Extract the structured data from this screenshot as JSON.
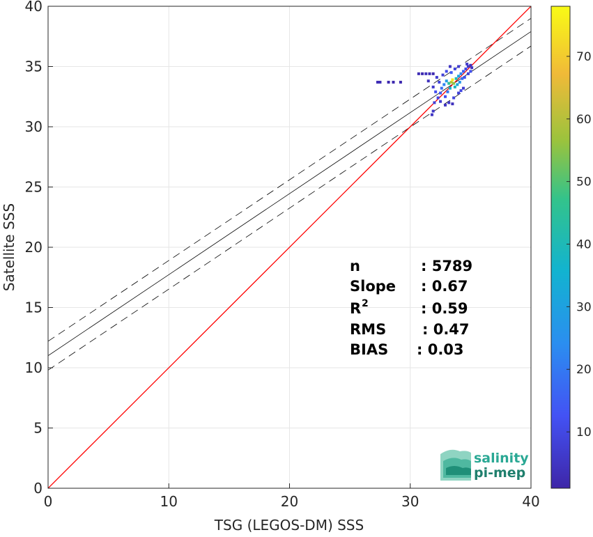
{
  "chart_data": {
    "type": "scatter",
    "subtype": "2d-density-scatter",
    "xlabel": "TSG (LEGOS-DM) SSS",
    "ylabel": "Satellite SSS",
    "xlim": [
      0,
      40
    ],
    "ylim": [
      0,
      40
    ],
    "x_ticks": [
      0,
      10,
      20,
      30,
      40
    ],
    "y_ticks": [
      0,
      5,
      10,
      15,
      20,
      25,
      30,
      35,
      40
    ],
    "grid": true,
    "colorbar": {
      "range": [
        1,
        78
      ],
      "ticks": [
        10,
        20,
        30,
        40,
        50,
        60,
        70
      ],
      "colormap": "parula"
    },
    "lines": {
      "identity": {
        "x": [
          0,
          40
        ],
        "y": [
          0,
          40
        ],
        "color": "#ff0000"
      },
      "fit": {
        "x": [
          0,
          40
        ],
        "y": [
          11.0,
          37.9
        ],
        "color": "#000000"
      },
      "fit_upper": {
        "x": [
          0,
          40
        ],
        "y": [
          12.2,
          39.0
        ],
        "color": "#000000",
        "dash": true
      },
      "fit_lower": {
        "x": [
          0,
          40
        ],
        "y": [
          9.8,
          36.7
        ],
        "color": "#000000",
        "dash": true
      }
    },
    "stats": [
      {
        "label": "n",
        "value": ": 5789",
        "sup": ""
      },
      {
        "label": "Slope",
        "value": ": 0.67",
        "sup": ""
      },
      {
        "label": "R",
        "value": ": 0.59",
        "sup": "2"
      },
      {
        "label": "RMS",
        "value": ": 0.47",
        "sup": ""
      },
      {
        "label": "BIAS",
        "value": ": 0.03",
        "sup": ""
      }
    ],
    "density_points": [
      {
        "x": 27.3,
        "y": 33.7,
        "c": 3
      },
      {
        "x": 27.5,
        "y": 33.7,
        "c": 3
      },
      {
        "x": 28.2,
        "y": 33.7,
        "c": 2
      },
      {
        "x": 28.6,
        "y": 33.7,
        "c": 2
      },
      {
        "x": 29.2,
        "y": 33.7,
        "c": 2
      },
      {
        "x": 30.7,
        "y": 34.4,
        "c": 3
      },
      {
        "x": 31.0,
        "y": 34.4,
        "c": 2
      },
      {
        "x": 31.3,
        "y": 34.4,
        "c": 4
      },
      {
        "x": 31.6,
        "y": 34.4,
        "c": 3
      },
      {
        "x": 31.9,
        "y": 34.4,
        "c": 2
      },
      {
        "x": 31.8,
        "y": 31.0,
        "c": 5
      },
      {
        "x": 31.9,
        "y": 31.3,
        "c": 6
      },
      {
        "x": 32.0,
        "y": 32.0,
        "c": 8
      },
      {
        "x": 32.3,
        "y": 32.4,
        "c": 10
      },
      {
        "x": 32.5,
        "y": 32.8,
        "c": 14
      },
      {
        "x": 32.6,
        "y": 33.2,
        "c": 18
      },
      {
        "x": 32.8,
        "y": 33.5,
        "c": 22
      },
      {
        "x": 33.0,
        "y": 33.8,
        "c": 28
      },
      {
        "x": 33.2,
        "y": 33.6,
        "c": 45
      },
      {
        "x": 33.4,
        "y": 33.7,
        "c": 60
      },
      {
        "x": 33.5,
        "y": 33.9,
        "c": 75
      },
      {
        "x": 33.6,
        "y": 33.6,
        "c": 55
      },
      {
        "x": 33.8,
        "y": 34.0,
        "c": 40
      },
      {
        "x": 34.0,
        "y": 34.2,
        "c": 30
      },
      {
        "x": 34.2,
        "y": 34.4,
        "c": 22
      },
      {
        "x": 34.4,
        "y": 34.6,
        "c": 15
      },
      {
        "x": 34.6,
        "y": 34.8,
        "c": 10
      },
      {
        "x": 34.8,
        "y": 35.0,
        "c": 6
      },
      {
        "x": 35.0,
        "y": 35.1,
        "c": 4
      },
      {
        "x": 35.1,
        "y": 34.9,
        "c": 5
      },
      {
        "x": 32.9,
        "y": 32.5,
        "c": 12
      },
      {
        "x": 33.1,
        "y": 32.9,
        "c": 20
      },
      {
        "x": 33.3,
        "y": 33.2,
        "c": 35
      },
      {
        "x": 33.7,
        "y": 33.3,
        "c": 38
      },
      {
        "x": 33.9,
        "y": 33.5,
        "c": 33
      },
      {
        "x": 34.1,
        "y": 33.7,
        "c": 26
      },
      {
        "x": 34.3,
        "y": 34.0,
        "c": 18
      },
      {
        "x": 34.5,
        "y": 34.1,
        "c": 12
      },
      {
        "x": 32.4,
        "y": 33.7,
        "c": 9
      },
      {
        "x": 32.2,
        "y": 34.1,
        "c": 7
      },
      {
        "x": 32.7,
        "y": 34.3,
        "c": 8
      },
      {
        "x": 33.0,
        "y": 34.6,
        "c": 11
      },
      {
        "x": 33.4,
        "y": 34.5,
        "c": 14
      },
      {
        "x": 33.7,
        "y": 34.8,
        "c": 9
      },
      {
        "x": 34.0,
        "y": 35.0,
        "c": 7
      },
      {
        "x": 33.2,
        "y": 32.0,
        "c": 6
      },
      {
        "x": 33.6,
        "y": 32.4,
        "c": 9
      },
      {
        "x": 34.0,
        "y": 32.8,
        "c": 8
      },
      {
        "x": 34.4,
        "y": 33.2,
        "c": 7
      },
      {
        "x": 32.1,
        "y": 32.9,
        "c": 12
      },
      {
        "x": 31.9,
        "y": 33.3,
        "c": 6
      },
      {
        "x": 32.9,
        "y": 31.8,
        "c": 5
      },
      {
        "x": 33.5,
        "y": 31.9,
        "c": 4
      },
      {
        "x": 34.8,
        "y": 34.4,
        "c": 8
      },
      {
        "x": 35.0,
        "y": 34.6,
        "c": 12
      },
      {
        "x": 34.7,
        "y": 35.2,
        "c": 6
      },
      {
        "x": 33.3,
        "y": 35.0,
        "c": 5
      },
      {
        "x": 32.5,
        "y": 32.1,
        "c": 7
      },
      {
        "x": 31.5,
        "y": 33.8,
        "c": 4
      },
      {
        "x": 34.2,
        "y": 33.0,
        "c": 10
      }
    ]
  },
  "logo": {
    "line1": "salinity",
    "line2": "pi-mep"
  }
}
